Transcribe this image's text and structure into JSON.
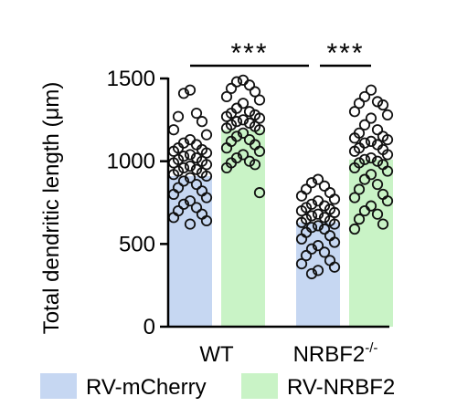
{
  "chart_data": {
    "type": "bar",
    "ylabel": "Total dendritic length (μm)",
    "ylim": [
      0,
      1500
    ],
    "yticks": [
      0,
      500,
      1000,
      1500
    ],
    "groups": [
      {
        "label": "WT",
        "superscript": ""
      },
      {
        "label": "NRBF2",
        "superscript": "-/-"
      }
    ],
    "series": [
      {
        "name": "RV-mCherry",
        "color": "#c6d7f2"
      },
      {
        "name": "RV-NRBF2",
        "color": "#c9f3c6"
      }
    ],
    "bars": [
      {
        "group": 0,
        "series": 0,
        "value": 910
      },
      {
        "group": 0,
        "series": 1,
        "value": 1190
      },
      {
        "group": 1,
        "series": 0,
        "value": 630
      },
      {
        "group": 1,
        "series": 1,
        "value": 1010
      }
    ],
    "points": [
      [
        1430,
        1410,
        1290,
        1270,
        1240,
        1190,
        1160,
        1130,
        1110,
        1100,
        1080,
        1070,
        1060,
        1050,
        1040,
        1030,
        1020,
        1010,
        1000,
        990,
        980,
        970,
        960,
        950,
        940,
        930,
        920,
        910,
        900,
        880,
        860,
        840,
        820,
        800,
        780,
        760,
        740,
        720,
        700,
        680,
        660,
        640,
        620
      ],
      [
        1490,
        1480,
        1460,
        1440,
        1420,
        1390,
        1370,
        1350,
        1320,
        1300,
        1290,
        1280,
        1270,
        1260,
        1250,
        1240,
        1230,
        1220,
        1210,
        1200,
        1190,
        1170,
        1150,
        1130,
        1120,
        1100,
        1080,
        1060,
        1040,
        1020,
        1000,
        990,
        980,
        960,
        810
      ],
      [
        890,
        870,
        850,
        830,
        810,
        790,
        770,
        760,
        740,
        730,
        720,
        710,
        700,
        690,
        680,
        670,
        660,
        650,
        640,
        630,
        620,
        610,
        600,
        590,
        570,
        550,
        530,
        510,
        490,
        470,
        450,
        430,
        400,
        380,
        360,
        340,
        320
      ],
      [
        1430,
        1390,
        1360,
        1350,
        1340,
        1300,
        1280,
        1260,
        1220,
        1190,
        1170,
        1150,
        1140,
        1130,
        1120,
        1110,
        1100,
        1080,
        1070,
        1060,
        1040,
        1020,
        1010,
        1000,
        990,
        980,
        960,
        940,
        920,
        890,
        860,
        830,
        800,
        780,
        760,
        730,
        700,
        680,
        650,
        620,
        590
      ]
    ],
    "significance": [
      {
        "from_bar": 0,
        "to_bar": 2,
        "label": "***"
      },
      {
        "from_bar": 2,
        "to_bar": 3,
        "label": "***"
      }
    ],
    "legend_placement": "bottom",
    "grid": false
  }
}
